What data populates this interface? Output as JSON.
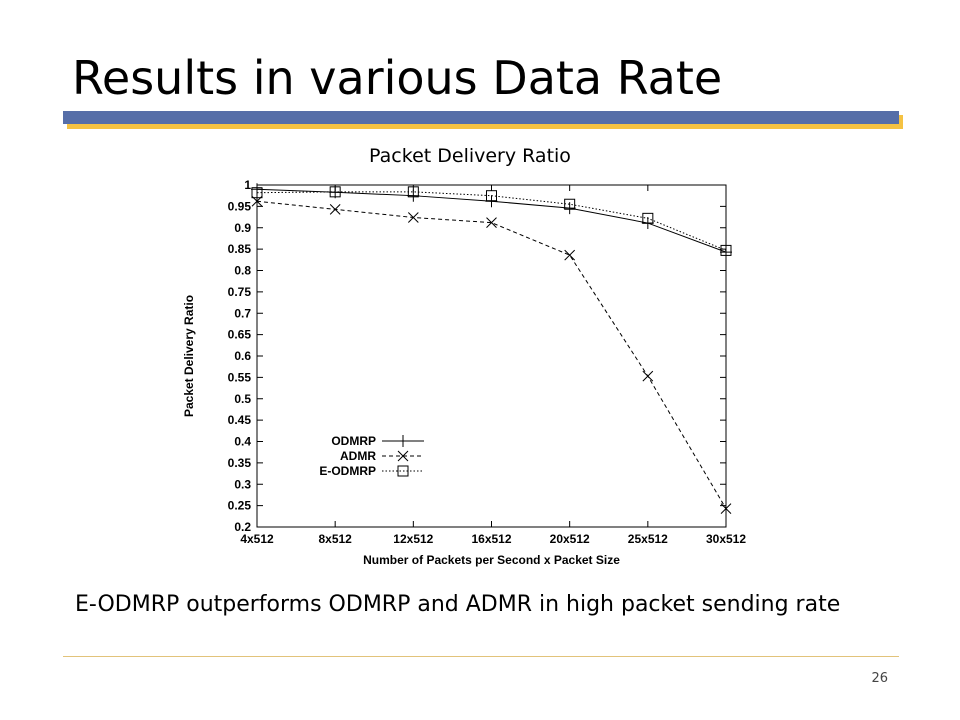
{
  "slide": {
    "title": "Results in various Data Rate",
    "chart_caption": "Packet Delivery Ratio",
    "body_text": "E-ODMRP outperforms ODMRP and ADMR in high packet sending rate",
    "page_number": "26"
  },
  "colors": {
    "title_bar": "#566ea8",
    "title_bar_shadow": "#f5c242",
    "footer_rule": "#e2c37a"
  },
  "chart_data": {
    "type": "line",
    "title": "",
    "xlabel": "Number of Packets per Second x Packet Size",
    "ylabel": "Packet Delivery Ratio",
    "categories": [
      "4x512",
      "8x512",
      "12x512",
      "16x512",
      "20x512",
      "25x512",
      "30x512"
    ],
    "ylim": [
      0.2,
      1
    ],
    "yticks": [
      "0.2",
      "0.25",
      "0.3",
      "0.35",
      "0.4",
      "0.45",
      "0.5",
      "0.55",
      "0.6",
      "0.65",
      "0.7",
      "0.75",
      "0.8",
      "0.85",
      "0.9",
      "0.95",
      "1"
    ],
    "grid": false,
    "legend_position": "lower-left",
    "series": [
      {
        "name": "ODMRP",
        "marker": "plus",
        "dash": "solid",
        "values": [
          0.99,
          0.983,
          0.975,
          0.962,
          0.946,
          0.911,
          0.843
        ]
      },
      {
        "name": "ADMR",
        "marker": "cross",
        "dash": "dashed",
        "values": [
          0.962,
          0.943,
          0.924,
          0.912,
          0.836,
          0.553,
          0.243
        ]
      },
      {
        "name": "E-ODMRP",
        "marker": "square",
        "dash": "dotted",
        "values": [
          0.982,
          0.984,
          0.984,
          0.975,
          0.955,
          0.922,
          0.847
        ]
      }
    ]
  }
}
